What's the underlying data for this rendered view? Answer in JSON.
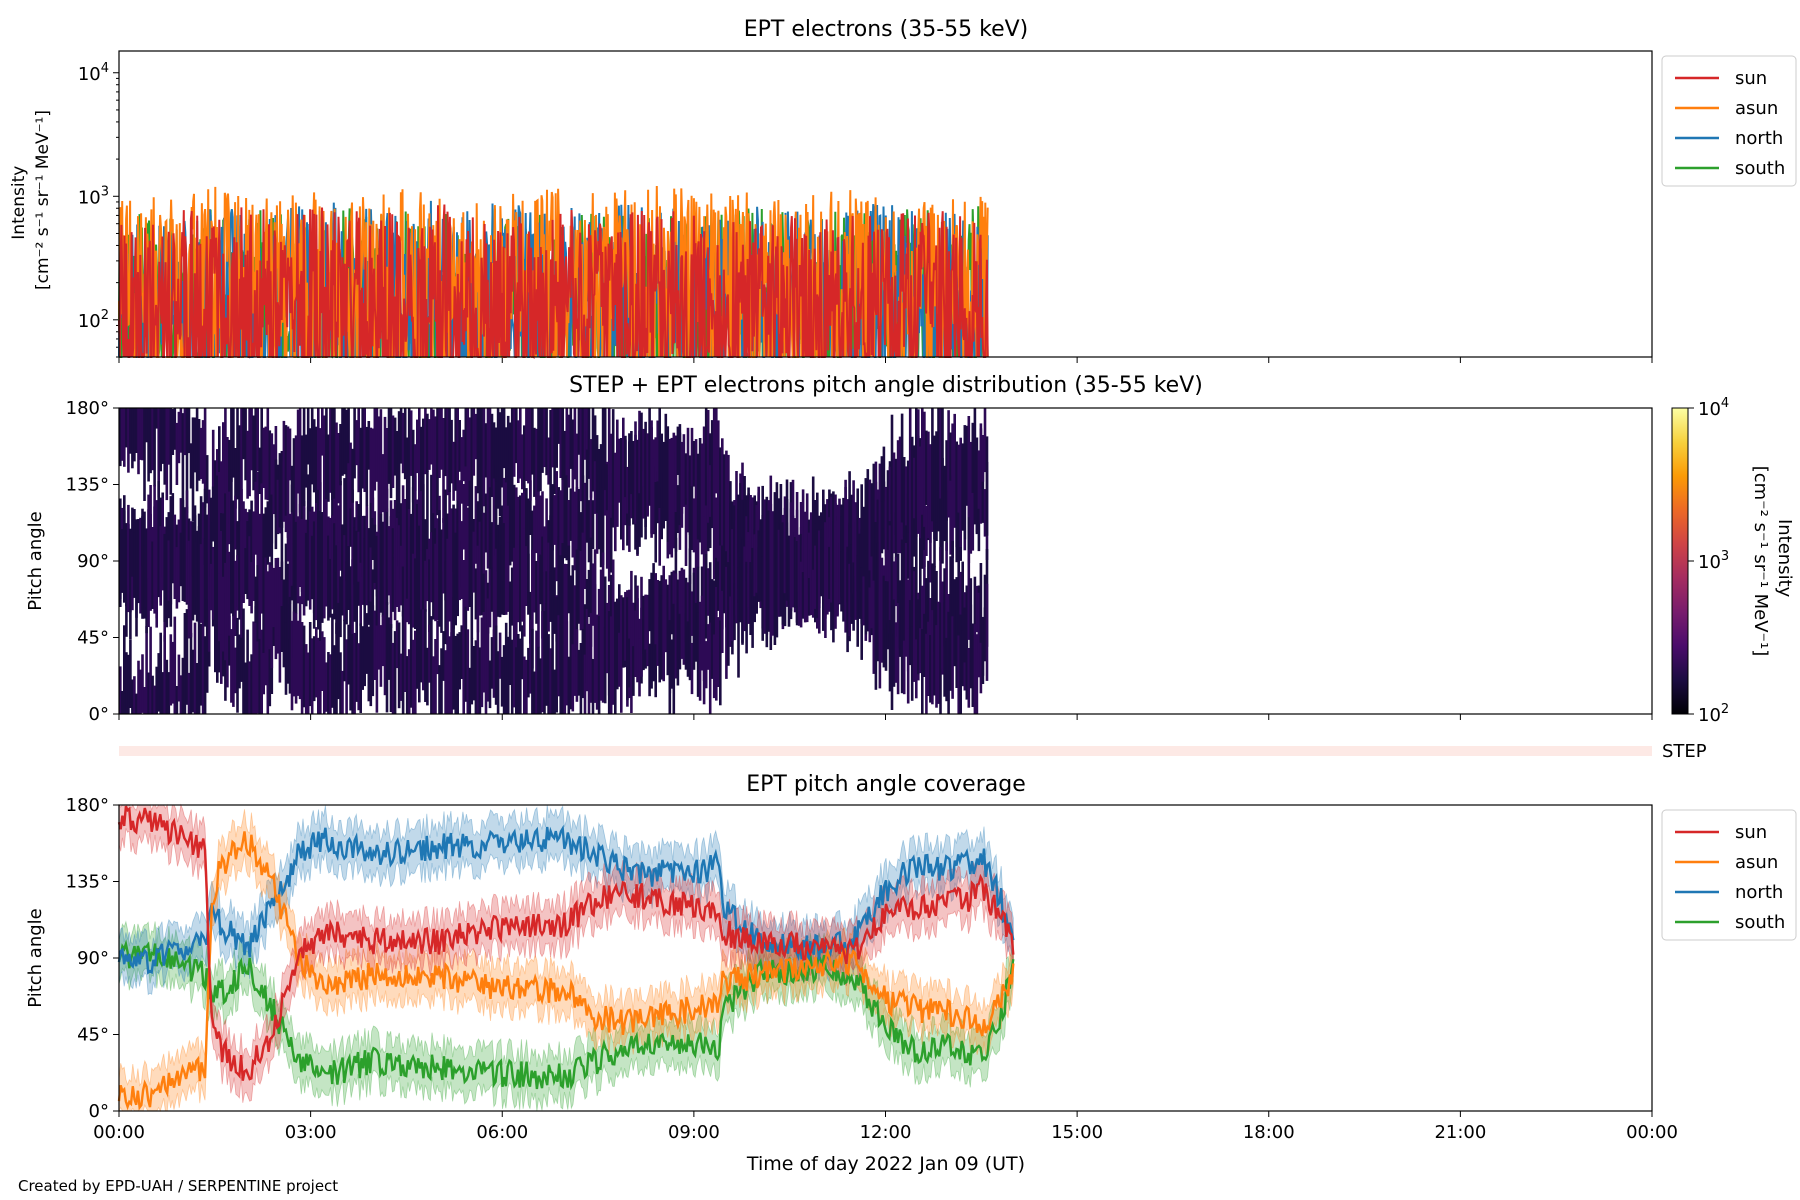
{
  "footer": {
    "credit": "Created by EPD-UAH / SERPENTINE project"
  },
  "colors": {
    "sun": "#d62728",
    "asun": "#ff7f0e",
    "north": "#1f77b4",
    "south": "#2ca02c"
  },
  "chart_data": [
    {
      "type": "line",
      "title": "EPT electrons (35-55 keV)",
      "ylabel_line1": "Intensity",
      "ylabel_line2": "[cm⁻² s⁻¹ sr⁻¹ MeV⁻¹]",
      "yscale": "log",
      "ylim": [
        50,
        15000
      ],
      "y_ticks": [
        {
          "value": 100,
          "base": "10",
          "exp": "2"
        },
        {
          "value": 1000,
          "base": "10",
          "exp": "3"
        },
        {
          "value": 10000,
          "base": "10",
          "exp": "4"
        }
      ],
      "xlim_hours": [
        0,
        24
      ],
      "legend": {
        "position": "outside-right",
        "entries": [
          "sun",
          "asun",
          "north",
          "south"
        ]
      },
      "series": [
        {
          "name": "sun",
          "color": "#d62728",
          "x_hours": [
            0,
            0.5,
            1,
            1.5,
            2,
            2.5,
            3,
            3.5,
            4,
            4.5,
            5,
            5.5,
            6,
            6.5,
            7,
            7.5,
            8,
            8.5,
            9,
            9.5,
            10,
            10.5,
            11,
            11.5,
            12,
            12.5,
            13,
            13.6
          ],
          "values": [
            180,
            160,
            200,
            170,
            220,
            190,
            240,
            200,
            210,
            180,
            230,
            200,
            190,
            170,
            210,
            180,
            200,
            190,
            220,
            170,
            180,
            200,
            190,
            210,
            180,
            200,
            190,
            170
          ]
        },
        {
          "name": "asun",
          "color": "#ff7f0e",
          "x_hours": [
            0,
            0.5,
            1,
            1.5,
            2,
            2.5,
            3,
            3.5,
            4,
            4.5,
            5,
            5.5,
            6,
            6.5,
            7,
            7.5,
            8,
            8.5,
            9,
            9.5,
            10,
            10.5,
            11,
            11.5,
            12,
            12.5,
            13,
            13.6
          ],
          "values": [
            260,
            280,
            250,
            300,
            270,
            290,
            310,
            260,
            280,
            300,
            270,
            290,
            260,
            280,
            300,
            270,
            290,
            310,
            280,
            260,
            290,
            270,
            300,
            280,
            260,
            290,
            270,
            250
          ]
        },
        {
          "name": "north",
          "color": "#1f77b4",
          "x_hours": [
            0,
            0.5,
            1,
            1.5,
            2,
            2.5,
            3,
            3.5,
            4,
            4.5,
            5,
            5.5,
            6,
            6.5,
            7,
            7.5,
            8,
            8.5,
            9,
            9.5,
            10,
            10.5,
            11,
            11.5,
            12,
            12.5,
            13,
            13.6
          ],
          "values": [
            150,
            170,
            160,
            210,
            190,
            230,
            200,
            240,
            220,
            200,
            250,
            210,
            230,
            200,
            220,
            190,
            240,
            210,
            200,
            180,
            210,
            190,
            220,
            200,
            230,
            210,
            200,
            190
          ]
        },
        {
          "name": "south",
          "color": "#2ca02c",
          "x_hours": [
            0,
            0.5,
            1,
            1.5,
            2,
            2.5,
            3,
            3.5,
            4,
            4.5,
            5,
            5.5,
            6,
            6.5,
            7,
            7.5,
            8,
            8.5,
            9,
            9.5,
            10,
            10.5,
            11,
            11.5,
            12,
            12.5,
            13,
            13.6
          ],
          "values": [
            170,
            190,
            180,
            200,
            210,
            220,
            180,
            200,
            210,
            190,
            200,
            180,
            210,
            190,
            200,
            220,
            190,
            200,
            180,
            210,
            200,
            190,
            180,
            200,
            190,
            210,
            200,
            220
          ]
        }
      ]
    },
    {
      "type": "heatmap",
      "title": "STEP + EPT electrons pitch angle distribution (35-55 keV)",
      "ylabel": "Pitch angle",
      "ylim": [
        0,
        180
      ],
      "y_ticks": [
        "0°",
        "45°",
        "90°",
        "135°",
        "180°"
      ],
      "xlim_hours": [
        0,
        24
      ],
      "colorbar": {
        "scale": "log",
        "range": [
          100,
          10000
        ],
        "ticks": [
          {
            "value": 100,
            "base": "10",
            "exp": "2"
          },
          {
            "value": 1000,
            "base": "10",
            "exp": "3"
          },
          {
            "value": 10000,
            "base": "10",
            "exp": "4"
          }
        ],
        "label_line1": "Intensity",
        "label_line2": "[cm⁻² s⁻¹ sr⁻¹ MeV⁻¹]",
        "colormap": "inferno",
        "colors": [
          "#000004",
          "#1b0c41",
          "#4a0c6b",
          "#781c6d",
          "#a52c60",
          "#cf4446",
          "#ed6925",
          "#fb9b06",
          "#f7d13d",
          "#fcffa4"
        ]
      },
      "data_end_hours": 13.6,
      "typical_intensity": 200,
      "step_band_label": "STEP"
    },
    {
      "type": "line",
      "title": "EPT pitch angle coverage",
      "ylabel": "Pitch angle",
      "xlabel": "Time of day 2022 Jan 09 (UT)",
      "ylim": [
        0,
        180
      ],
      "y_ticks": [
        "0°",
        "45°",
        "90°",
        "135°",
        "180°"
      ],
      "xlim_hours": [
        0,
        24
      ],
      "x_ticks": [
        "00:00",
        "03:00",
        "06:00",
        "09:00",
        "12:00",
        "15:00",
        "18:00",
        "21:00",
        "00:00"
      ],
      "legend": {
        "position": "outside-right",
        "entries": [
          "sun",
          "asun",
          "north",
          "south"
        ]
      },
      "band_halfwidth_deg": 13,
      "series": [
        {
          "name": "sun",
          "color": "#d62728",
          "x_hours": [
            0,
            0.5,
            1,
            1.35,
            1.45,
            1.6,
            2,
            2.4,
            2.8,
            3.2,
            4,
            5,
            6,
            7,
            7.5,
            8,
            9,
            9.4,
            9.45,
            10,
            11,
            11.5,
            12,
            12.5,
            13,
            13.3,
            13.5,
            13.8,
            14
          ],
          "values": [
            172,
            170,
            162,
            153,
            55,
            35,
            22,
            45,
            90,
            105,
            100,
            100,
            108,
            110,
            125,
            128,
            120,
            115,
            105,
            100,
            95,
            92,
            115,
            120,
            122,
            125,
            130,
            115,
            100
          ]
        },
        {
          "name": "asun",
          "color": "#ff7f0e",
          "x_hours": [
            0,
            0.5,
            1,
            1.35,
            1.45,
            1.6,
            2,
            2.4,
            2.8,
            3.2,
            4,
            5,
            6,
            7,
            7.5,
            8,
            9,
            9.4,
            9.45,
            10,
            11,
            11.5,
            12,
            12.5,
            13,
            13.3,
            13.5,
            13.8,
            14
          ],
          "values": [
            8,
            10,
            18,
            27,
            125,
            145,
            160,
            135,
            90,
            75,
            80,
            80,
            72,
            70,
            55,
            52,
            60,
            65,
            75,
            80,
            85,
            88,
            65,
            60,
            58,
            55,
            50,
            65,
            80
          ]
        },
        {
          "name": "north",
          "color": "#1f77b4",
          "x_hours": [
            0,
            0.5,
            1,
            1.35,
            1.45,
            1.6,
            2,
            2.4,
            2.8,
            3.2,
            4,
            5,
            6,
            7,
            7.5,
            8,
            9,
            9.4,
            9.45,
            10,
            11,
            11.5,
            12,
            12.5,
            13,
            13.3,
            13.5,
            13.8,
            14
          ],
          "values": [
            90,
            88,
            95,
            100,
            115,
            110,
            95,
            120,
            150,
            160,
            150,
            155,
            158,
            160,
            150,
            140,
            140,
            145,
            120,
            100,
            95,
            100,
            130,
            145,
            142,
            145,
            150,
            125,
            95
          ]
        },
        {
          "name": "south",
          "color": "#2ca02c",
          "x_hours": [
            0,
            0.5,
            1,
            1.35,
            1.45,
            1.6,
            2,
            2.4,
            2.8,
            3.2,
            4,
            5,
            6,
            7,
            7.5,
            8,
            9,
            9.4,
            9.45,
            10,
            11,
            11.5,
            12,
            12.5,
            13,
            13.3,
            13.5,
            13.8,
            14
          ],
          "values": [
            90,
            92,
            86,
            80,
            65,
            70,
            85,
            60,
            30,
            20,
            30,
            25,
            22,
            20,
            30,
            40,
            40,
            35,
            60,
            80,
            85,
            80,
            50,
            35,
            38,
            35,
            30,
            55,
            85
          ]
        }
      ]
    }
  ]
}
